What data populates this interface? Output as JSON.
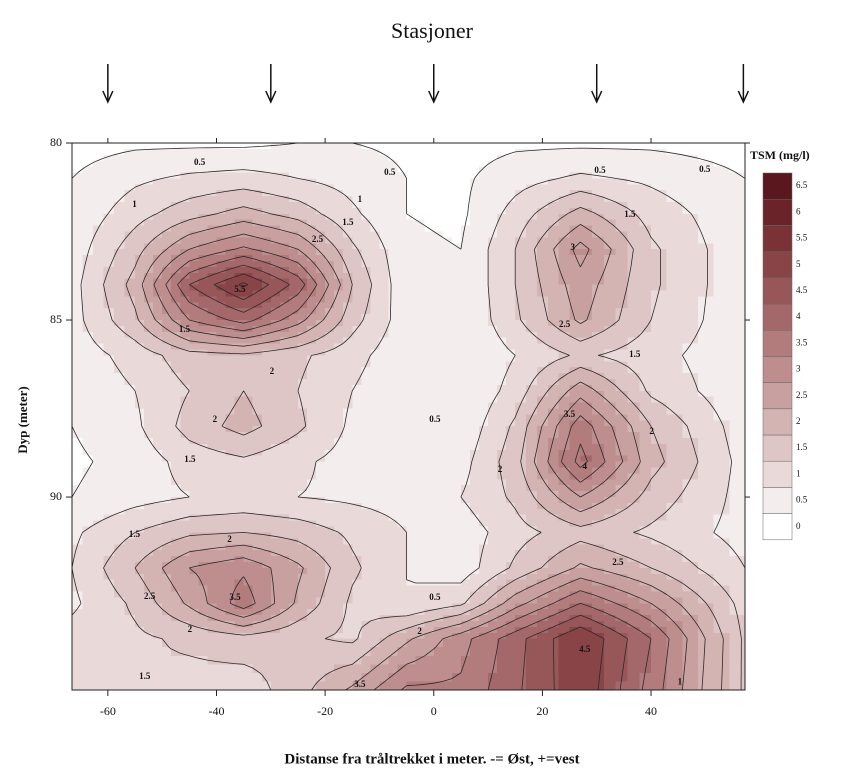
{
  "chart_data": {
    "type": "contour",
    "title": "Stasjoner",
    "xlabel": "Distanse fra tråltrekket i meter. -= Øst, +=vest",
    "ylabel": "Dyp (meter)",
    "colorbar_label": "TSM (mg/l)",
    "x": [
      -66.6,
      -55,
      -45,
      -35,
      -25,
      -15,
      -5,
      5,
      15,
      27,
      40,
      57.3
    ],
    "y": [
      80,
      81,
      82,
      83,
      84,
      85,
      86,
      87,
      88,
      89,
      90,
      91,
      92,
      93,
      94,
      95.45
    ],
    "z": [
      [
        0.3,
        0.4,
        0.4,
        0.4,
        0.5,
        0.5,
        0.4,
        0.3,
        0.4,
        0.4,
        0.4,
        0.3
      ],
      [
        0.5,
        0.9,
        1.1,
        1.2,
        1.0,
        0.8,
        0.5,
        0.4,
        0.8,
        1.1,
        0.9,
        0.5
      ],
      [
        0.6,
        1.3,
        1.8,
        2.2,
        1.8,
        1.1,
        0.5,
        0.4,
        1.2,
        2.2,
        1.3,
        0.6
      ],
      [
        0.7,
        1.8,
        3.0,
        3.6,
        3.0,
        1.6,
        0.6,
        0.5,
        1.5,
        3.2,
        1.6,
        0.6
      ],
      [
        0.8,
        2.2,
        4.5,
        5.6,
        4.3,
        2.0,
        0.6,
        0.5,
        1.5,
        2.8,
        1.6,
        0.6
      ],
      [
        0.8,
        1.9,
        3.5,
        4.2,
        3.2,
        1.7,
        0.7,
        0.5,
        1.4,
        2.6,
        1.5,
        0.6
      ],
      [
        0.7,
        1.2,
        1.8,
        1.9,
        1.6,
        1.2,
        0.6,
        0.5,
        1.0,
        1.6,
        1.2,
        0.6
      ],
      [
        0.6,
        1.0,
        1.5,
        2.0,
        1.5,
        1.0,
        0.5,
        0.5,
        1.2,
        2.8,
        1.4,
        0.6
      ],
      [
        0.5,
        0.9,
        1.7,
        2.2,
        1.6,
        0.9,
        0.5,
        0.6,
        1.6,
        3.8,
        2.0,
        0.7
      ],
      [
        0.4,
        0.7,
        1.2,
        1.4,
        1.1,
        0.8,
        0.6,
        0.8,
        1.8,
        4.2,
        2.2,
        0.8
      ],
      [
        0.5,
        0.8,
        1.0,
        1.1,
        1.0,
        0.9,
        0.8,
        1.0,
        1.6,
        3.0,
        1.8,
        0.8
      ],
      [
        0.9,
        1.5,
        1.9,
        2.0,
        1.8,
        1.4,
        1.0,
        0.7,
        1.3,
        1.8,
        1.4,
        0.8
      ],
      [
        1.0,
        2.0,
        3.0,
        3.4,
        2.6,
        1.6,
        1.0,
        0.7,
        1.6,
        2.6,
        2.0,
        1.0
      ],
      [
        0.9,
        1.6,
        2.6,
        3.8,
        2.4,
        1.4,
        1.0,
        1.4,
        2.8,
        4.0,
        3.0,
        1.3
      ],
      [
        1.2,
        1.4,
        1.6,
        1.8,
        1.6,
        1.4,
        2.4,
        3.3,
        4.3,
        5.5,
        4.0,
        1.4
      ],
      [
        1.4,
        1.5,
        1.3,
        1.2,
        1.8,
        2.6,
        3.6,
        3.6,
        4.4,
        5.4,
        3.8,
        1.4
      ]
    ],
    "levels": [
      0,
      0.5,
      1,
      1.5,
      2,
      2.5,
      3,
      3.5,
      4,
      4.5,
      5,
      5.5,
      6,
      6.5
    ],
    "colors": [
      "#ffffff",
      "#f4eded",
      "#ead9d9",
      "#dfc6c6",
      "#d4b3b3",
      "#c9a0a0",
      "#be8e8e",
      "#b27b7c",
      "#a5686a",
      "#975658",
      "#884447",
      "#793337",
      "#6a2429",
      "#5a171d"
    ],
    "xlim": [
      -66.6,
      57.3
    ],
    "ylim": [
      80,
      95.45
    ],
    "xticks": [
      -60,
      -40,
      -20,
      0,
      20,
      40
    ],
    "yticks": [
      80,
      85,
      90
    ],
    "stations": [
      -60,
      -30,
      0,
      30,
      57
    ],
    "contour_labels": [
      {
        "x": -43.1,
        "y": 80.56,
        "value": 0.5
      },
      {
        "x": -8.1,
        "y": 80.85,
        "value": 0.5
      },
      {
        "x": 30.6,
        "y": 80.79,
        "value": 0.5
      },
      {
        "x": 49.9,
        "y": 80.76,
        "value": 0.5
      },
      {
        "x": -55.1,
        "y": 81.75,
        "value": 1
      },
      {
        "x": -13.6,
        "y": 81.61,
        "value": 1
      },
      {
        "x": -15.8,
        "y": 82.26,
        "value": 1.5
      },
      {
        "x": 36.1,
        "y": 82.03,
        "value": 1.5
      },
      {
        "x": 25.6,
        "y": 82.97,
        "value": 3
      },
      {
        "x": -35.7,
        "y": 84.15,
        "value": 5.5
      },
      {
        "x": -21.4,
        "y": 82.74,
        "value": 2.5
      },
      {
        "x": -45.9,
        "y": 85.28,
        "value": 1.5
      },
      {
        "x": 24.1,
        "y": 85.14,
        "value": 2.5
      },
      {
        "x": 37.0,
        "y": 85.99,
        "value": 1.5
      },
      {
        "x": -29.8,
        "y": 86.47,
        "value": 2
      },
      {
        "x": 0.2,
        "y": 87.82,
        "value": 0.5
      },
      {
        "x": -40.3,
        "y": 87.82,
        "value": 2
      },
      {
        "x": -44.9,
        "y": 88.95,
        "value": 1.5
      },
      {
        "x": 25.0,
        "y": 87.68,
        "value": 3.5
      },
      {
        "x": 27.8,
        "y": 89.15,
        "value": 4
      },
      {
        "x": 12.2,
        "y": 89.24,
        "value": 2
      },
      {
        "x": 40.1,
        "y": 88.16,
        "value": 2
      },
      {
        "x": 33.9,
        "y": 91.86,
        "value": 2.5
      },
      {
        "x": -37.6,
        "y": 91.21,
        "value": 2
      },
      {
        "x": -55.1,
        "y": 91.07,
        "value": 1.5
      },
      {
        "x": -36.6,
        "y": 92.85,
        "value": 3.5
      },
      {
        "x": -52.3,
        "y": 92.82,
        "value": 2.5
      },
      {
        "x": -44.9,
        "y": 93.76,
        "value": 2
      },
      {
        "x": 0.2,
        "y": 92.85,
        "value": 0.5
      },
      {
        "x": -2.6,
        "y": 93.81,
        "value": 2
      },
      {
        "x": 27.8,
        "y": 94.32,
        "value": 4.5
      },
      {
        "x": 45.3,
        "y": 95.23,
        "value": 1
      },
      {
        "x": -53.2,
        "y": 95.08,
        "value": 1.5
      },
      {
        "x": -13.6,
        "y": 95.31,
        "value": 3.5
      }
    ]
  }
}
